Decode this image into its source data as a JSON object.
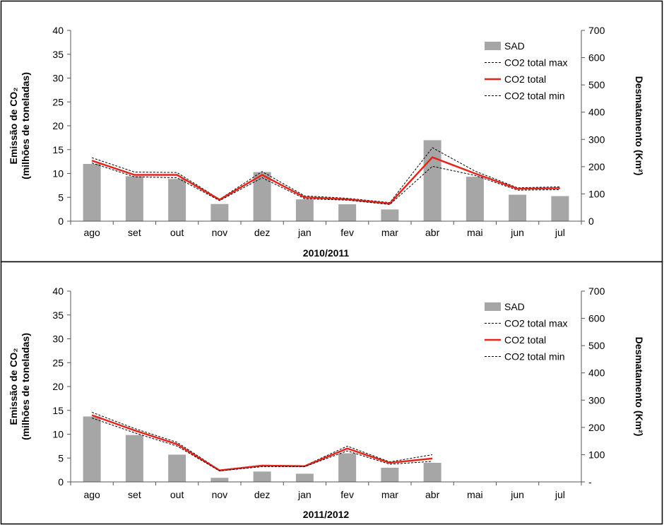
{
  "chart_data": [
    {
      "type": "bar",
      "categories": [
        "ago",
        "set",
        "out",
        "nov",
        "dez",
        "jan",
        "fev",
        "mar",
        "abr",
        "mai",
        "jun",
        "jul"
      ],
      "xlabel": "2010/2011",
      "ylabel_left": "Emissão de CO₂ (milhões de toneladas)",
      "ylabel_left_line1": "Emissão de CO₂",
      "ylabel_left_line2": "(milhões de toneladas)",
      "ylabel_right": "Desmatamento (Km²)",
      "ylim_left": [
        0,
        40
      ],
      "ylim_right": [
        0,
        700
      ],
      "yticks_left": [
        "0",
        "5",
        "10",
        "15",
        "20",
        "25",
        "30",
        "35",
        "40"
      ],
      "yticks_right": [
        "0",
        "100",
        "200",
        "300",
        "400",
        "500",
        "600",
        "700"
      ],
      "legend_position": "top-right",
      "series": [
        {
          "name": "SAD",
          "kind": "bar",
          "axis": "right",
          "color": "#a6a6a6",
          "values": [
            210,
            165,
            155,
            63,
            180,
            80,
            62,
            43,
            297,
            163,
            97,
            92
          ]
        },
        {
          "name": "CO2 total max",
          "kind": "line",
          "axis": "left",
          "color": "#000000",
          "dash": true,
          "values": [
            13.3,
            10.3,
            10.2,
            4.6,
            10.4,
            5.3,
            4.8,
            3.9,
            15.4,
            10.5,
            7.0,
            7.2
          ]
        },
        {
          "name": "CO2 total",
          "kind": "line",
          "axis": "left",
          "color": "#e3251b",
          "dash": false,
          "values": [
            12.7,
            9.7,
            9.7,
            4.5,
            9.7,
            5.0,
            4.6,
            3.7,
            13.4,
            10.0,
            6.8,
            6.9
          ]
        },
        {
          "name": "CO2 total min",
          "kind": "line",
          "axis": "left",
          "color": "#000000",
          "dash": true,
          "values": [
            12.2,
            9.3,
            9.1,
            4.3,
            9.1,
            4.7,
            4.4,
            3.5,
            11.5,
            9.6,
            6.5,
            6.6
          ]
        }
      ]
    },
    {
      "type": "bar",
      "categories": [
        "ago",
        "set",
        "out",
        "nov",
        "dez",
        "jan",
        "fev",
        "mar",
        "abr",
        "mai",
        "jun",
        "jul"
      ],
      "xlabel": "2011/2012",
      "ylabel_left": "Emissão de CO₂ (milhões de toneladas)",
      "ylabel_left_line1": "Emissão de CO₂",
      "ylabel_left_line2": "(milhões de toneladas)",
      "ylabel_right": "Desmatamento (Km²)",
      "ylim_left": [
        0,
        40
      ],
      "ylim_right": [
        0,
        700
      ],
      "yticks_left": [
        "0",
        "5",
        "10",
        "15",
        "20",
        "25",
        "30",
        "35",
        "40"
      ],
      "yticks_right": [
        "-",
        "100",
        "200",
        "300",
        "400",
        "500",
        "600",
        "700"
      ],
      "legend_position": "top-right",
      "series": [
        {
          "name": "SAD",
          "kind": "bar",
          "axis": "right",
          "color": "#a6a6a6",
          "values": [
            240,
            172,
            100,
            15,
            38,
            30,
            105,
            52,
            70,
            null,
            null,
            null
          ]
        },
        {
          "name": "CO2 total max",
          "kind": "line",
          "axis": "left",
          "color": "#000000",
          "dash": true,
          "values": [
            14.6,
            11.2,
            8.3,
            2.5,
            3.5,
            3.4,
            7.5,
            4.2,
            5.7,
            null,
            null,
            null
          ]
        },
        {
          "name": "CO2 total",
          "kind": "line",
          "axis": "left",
          "color": "#e3251b",
          "dash": false,
          "values": [
            14.0,
            10.8,
            7.9,
            2.4,
            3.4,
            3.3,
            7.0,
            4.0,
            4.9,
            null,
            null,
            null
          ]
        },
        {
          "name": "CO2 total min",
          "kind": "line",
          "axis": "left",
          "color": "#000000",
          "dash": true,
          "values": [
            13.4,
            10.3,
            7.5,
            2.3,
            3.2,
            3.2,
            6.5,
            3.7,
            4.3,
            null,
            null,
            null
          ]
        }
      ]
    }
  ]
}
